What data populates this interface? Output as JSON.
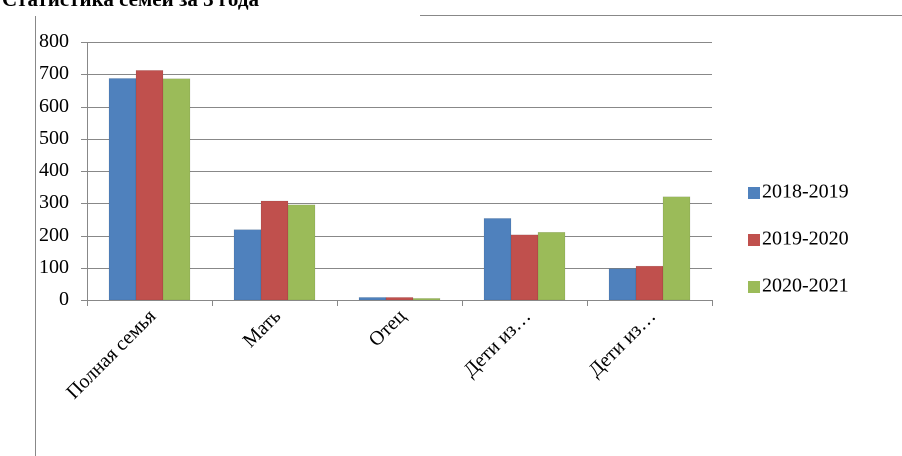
{
  "chart_data": {
    "type": "bar",
    "title": "Статистика семей за 3 года",
    "categories": [
      "Полная семья",
      "Мать",
      "Отец",
      "Дети из…",
      "Дети из…"
    ],
    "series": [
      {
        "name": "2018-2019",
        "color": "#4f81bd",
        "values": [
          687,
          218,
          8,
          253,
          97
        ]
      },
      {
        "name": "2019-2020",
        "color": "#c0504d",
        "values": [
          712,
          307,
          8,
          202,
          105
        ]
      },
      {
        "name": "2020-2021",
        "color": "#9bbb59",
        "values": [
          686,
          295,
          5,
          210,
          320
        ]
      }
    ],
    "ylim": [
      0,
      800
    ],
    "yticks": [
      0,
      100,
      200,
      300,
      400,
      500,
      600,
      700,
      800
    ],
    "grid": true,
    "legend": "right"
  }
}
